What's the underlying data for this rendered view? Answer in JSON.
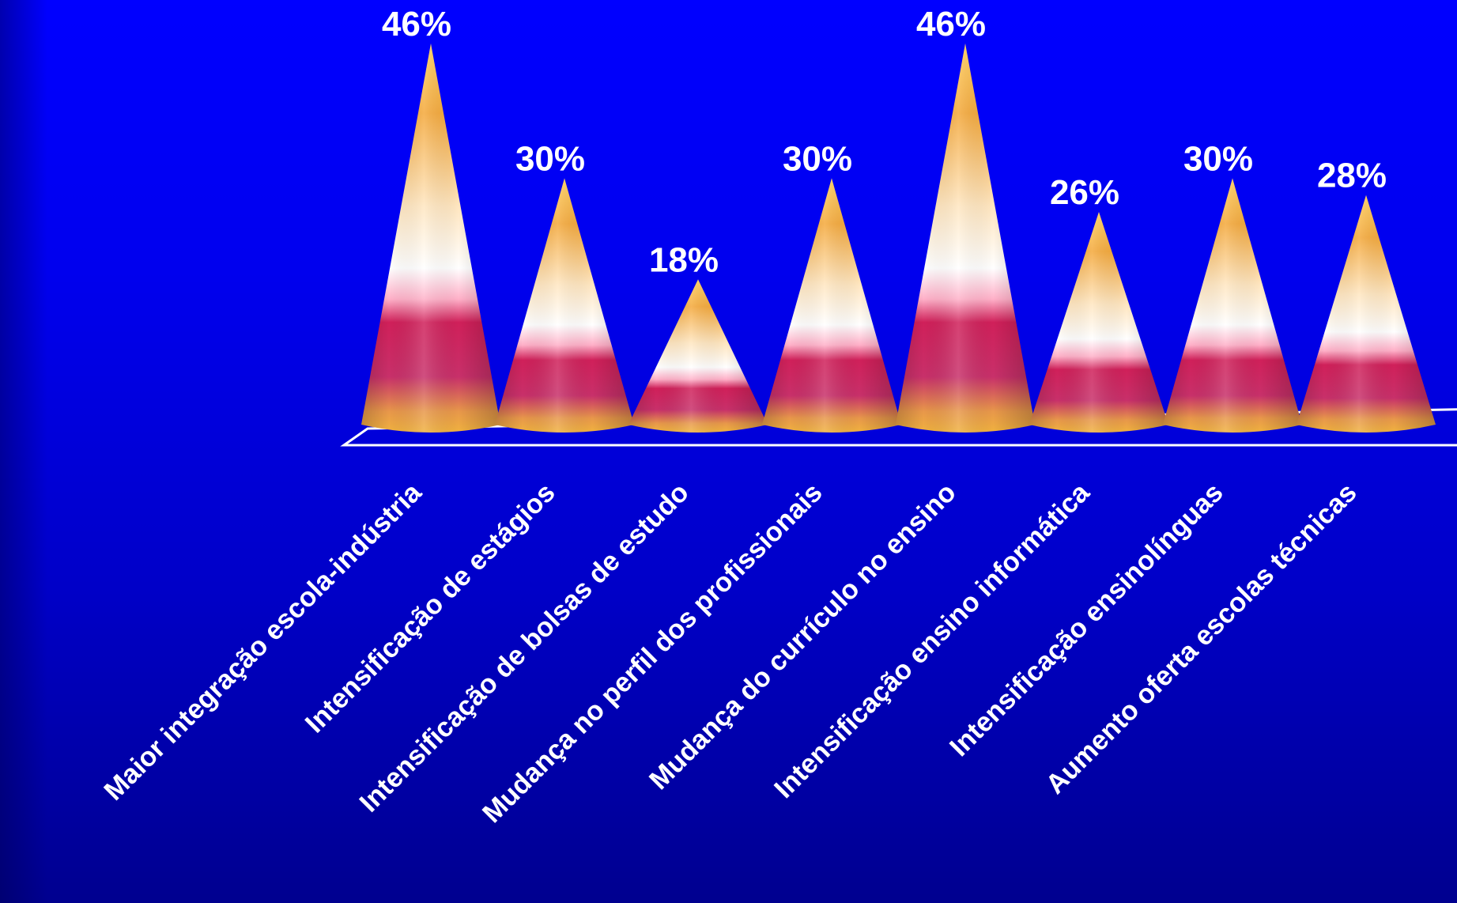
{
  "chart_data": {
    "type": "bar",
    "shape": "cone",
    "title": "",
    "xlabel": "",
    "ylabel": "",
    "ylim": [
      0,
      46
    ],
    "categories": [
      "Maior integração escola-indústria",
      "Intensificação de estágios",
      "Intensificação de bolsas de estudo",
      "Mudança no perfil dos profissionais",
      "Mudança do currículo no ensino",
      "Intensificação ensino informática",
      "Intensificação ensinolínguas",
      "Aumento oferta escolas técnicas"
    ],
    "values": [
      46,
      30,
      18,
      30,
      46,
      26,
      30,
      28
    ],
    "value_labels": [
      "46%",
      "30%",
      "18%",
      "30%",
      "46%",
      "26%",
      "30%",
      "28%"
    ],
    "grid": false,
    "legend": "none",
    "colors": {
      "background": "#0000ee",
      "label_text": "#ffffff",
      "cone_gold": "#f0a030",
      "cone_highlight": "#ffffff",
      "cone_band": "#d0205a",
      "floor_edge": "#ffffff"
    }
  }
}
